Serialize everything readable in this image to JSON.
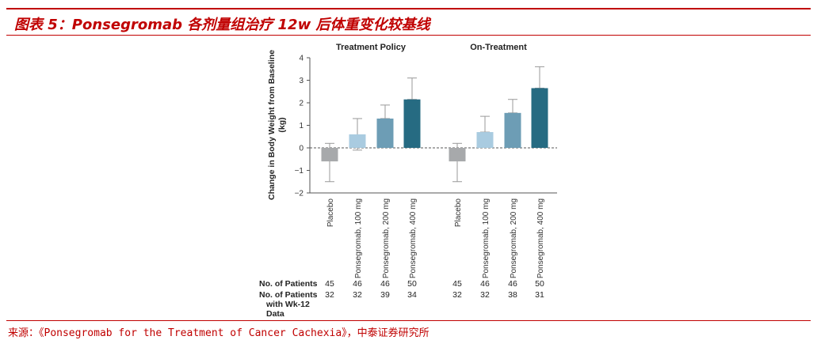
{
  "header": {
    "title": "图表 5：Ponsegromab 各剂量组治疗 12w 后体重变化较基线"
  },
  "footer": {
    "source": "来源：《Ponsegromab for the Treatment of Cancer Cachexia》，中泰证券研究所"
  },
  "chart_data": {
    "type": "bar",
    "ylabel_line1": "Change in Body Weight from Baseline",
    "ylabel_line2": "(kg)",
    "ylim": [
      -2,
      4
    ],
    "yticks": [
      "4",
      "3",
      "2",
      "1",
      "0",
      "−1",
      "−2"
    ],
    "categories": [
      "Placebo",
      "Ponsegromab, 100 mg",
      "Ponsegromab, 200 mg",
      "Ponsegromab, 400 mg"
    ],
    "colors": [
      "#a7a9ab",
      "#a9cbe0",
      "#6d9db5",
      "#266b82"
    ],
    "panels": [
      {
        "title": "Treatment Policy",
        "values": [
          -0.6,
          0.6,
          1.3,
          2.15
        ],
        "upper": [
          0.2,
          1.3,
          1.9,
          3.1
        ],
        "lower": [
          -1.5,
          -0.1,
          1.3,
          2.15
        ],
        "patients": [
          "45",
          "46",
          "46",
          "50"
        ],
        "patients_wk12": [
          "32",
          "32",
          "39",
          "34"
        ]
      },
      {
        "title": "On-Treatment",
        "values": [
          -0.6,
          0.7,
          1.55,
          2.65
        ],
        "upper": [
          0.2,
          1.4,
          2.15,
          3.6
        ],
        "lower": [
          -1.5,
          0.7,
          1.55,
          2.65
        ],
        "patients": [
          "45",
          "46",
          "46",
          "50"
        ],
        "patients_wk12": [
          "32",
          "32",
          "38",
          "31"
        ]
      }
    ],
    "table_labels": {
      "patients": "No. of Patients",
      "wk12_line1": "No. of Patients",
      "wk12_line2": "with Wk-12",
      "wk12_line3": "Data"
    }
  }
}
